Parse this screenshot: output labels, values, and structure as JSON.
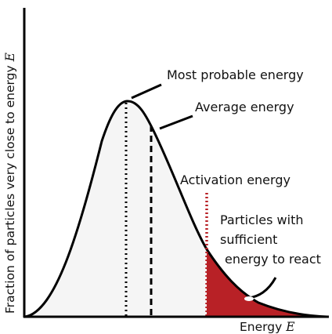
{
  "labels": {
    "most_probable": "Most probable energy",
    "average": "Average energy",
    "activation": "Activation energy",
    "particles_line1": "Particles with",
    "particles_line2": "sufficient",
    "particles_line3": "energy to react"
  },
  "axes": {
    "x_text": "Energy ",
    "x_symbol": "E",
    "y_text": "Fraction of particles very close to energy ",
    "y_symbol": "E"
  },
  "colors": {
    "curve": "#000000",
    "area_fill": "#f5f5f5",
    "reacting_fill": "#b82126",
    "activation_line": "#b82126"
  }
}
